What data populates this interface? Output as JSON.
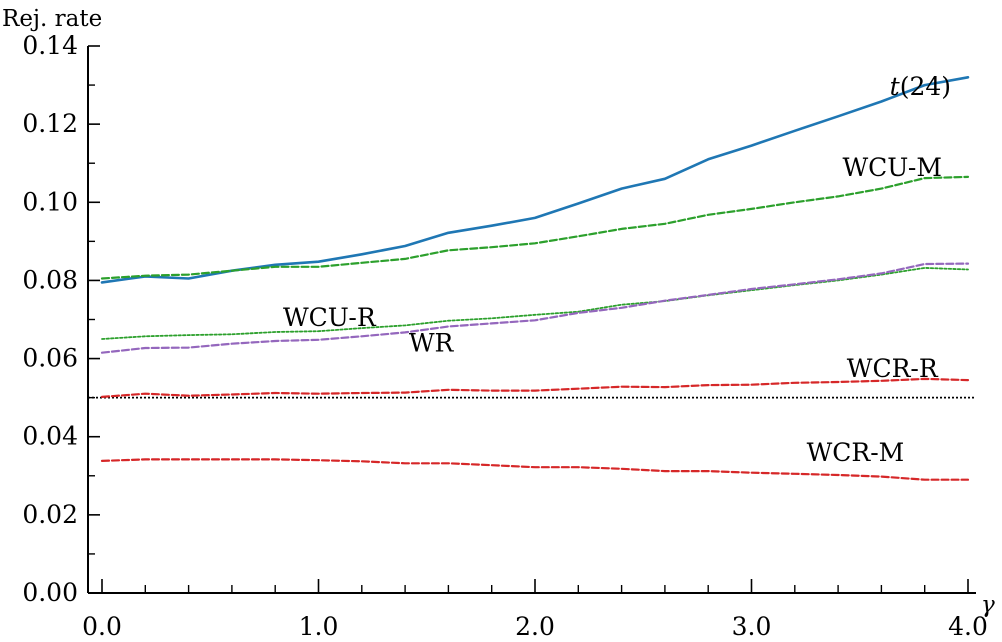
{
  "chart_data": {
    "type": "line",
    "ylabel": "Rej. rate",
    "xlabel": "γ",
    "xlim": [
      0.0,
      4.0
    ],
    "ylim": [
      0.0,
      0.14
    ],
    "x_tick_labels": [
      "0.0",
      "1.0",
      "2.0",
      "3.0",
      "4.0"
    ],
    "y_tick_labels": [
      "0.00",
      "0.02",
      "0.04",
      "0.06",
      "0.08",
      "0.10",
      "0.12",
      "0.14"
    ],
    "reference_line": {
      "y": 0.05,
      "style": "dotted",
      "color": "#000000"
    },
    "grid": false,
    "series": [
      {
        "name": "t(24)",
        "color": "#1f77b4",
        "style": "solid",
        "x": [
          0.0,
          0.2,
          0.4,
          0.6,
          0.8,
          1.0,
          1.2,
          1.4,
          1.6,
          1.8,
          2.0,
          2.2,
          2.4,
          2.6,
          2.8,
          3.0,
          3.2,
          3.4,
          3.6,
          3.8,
          4.0
        ],
        "y": [
          0.0795,
          0.081,
          0.0805,
          0.0825,
          0.084,
          0.0848,
          0.0867,
          0.0888,
          0.0922,
          0.094,
          0.096,
          0.0997,
          0.1035,
          0.106,
          0.111,
          0.1145,
          0.1183,
          0.122,
          0.1258,
          0.13,
          0.132
        ]
      },
      {
        "name": "WCU-M",
        "color": "#2ca02c",
        "style": "dashed",
        "x": [
          0.0,
          0.2,
          0.4,
          0.6,
          0.8,
          1.0,
          1.2,
          1.4,
          1.6,
          1.8,
          2.0,
          2.2,
          2.4,
          2.6,
          2.8,
          3.0,
          3.2,
          3.4,
          3.6,
          3.8,
          4.0
        ],
        "y": [
          0.0805,
          0.0812,
          0.0815,
          0.0825,
          0.0835,
          0.0835,
          0.0845,
          0.0855,
          0.0877,
          0.0885,
          0.0895,
          0.0913,
          0.0932,
          0.0945,
          0.0968,
          0.0983,
          0.1,
          0.1015,
          0.1035,
          0.1062,
          0.1065
        ]
      },
      {
        "name": "WCU-R",
        "color": "#2ca02c",
        "style": "dotted",
        "x": [
          0.0,
          0.2,
          0.4,
          0.6,
          0.8,
          1.0,
          1.2,
          1.4,
          1.6,
          1.8,
          2.0,
          2.2,
          2.4,
          2.6,
          2.8,
          3.0,
          3.2,
          3.4,
          3.6,
          3.8,
          4.0
        ],
        "y": [
          0.065,
          0.0657,
          0.066,
          0.0662,
          0.0668,
          0.067,
          0.0678,
          0.0685,
          0.0697,
          0.0703,
          0.0712,
          0.072,
          0.0738,
          0.0747,
          0.0762,
          0.0775,
          0.0788,
          0.08,
          0.0815,
          0.0832,
          0.0828
        ]
      },
      {
        "name": "WR",
        "color": "#9467bd",
        "style": "dashed",
        "x": [
          0.0,
          0.2,
          0.4,
          0.6,
          0.8,
          1.0,
          1.2,
          1.4,
          1.6,
          1.8,
          2.0,
          2.2,
          2.4,
          2.6,
          2.8,
          3.0,
          3.2,
          3.4,
          3.6,
          3.8,
          4.0
        ],
        "y": [
          0.0615,
          0.0627,
          0.0628,
          0.0638,
          0.0645,
          0.0648,
          0.0657,
          0.0667,
          0.0682,
          0.069,
          0.0698,
          0.0717,
          0.073,
          0.0748,
          0.0763,
          0.0778,
          0.079,
          0.0803,
          0.0818,
          0.0842,
          0.0843
        ]
      },
      {
        "name": "WCR-R",
        "color": "#d62728",
        "style": "dashed",
        "x": [
          0.0,
          0.2,
          0.4,
          0.6,
          0.8,
          1.0,
          1.2,
          1.4,
          1.6,
          1.8,
          2.0,
          2.2,
          2.4,
          2.6,
          2.8,
          3.0,
          3.2,
          3.4,
          3.6,
          3.8,
          4.0
        ],
        "y": [
          0.0502,
          0.051,
          0.0505,
          0.0508,
          0.0512,
          0.051,
          0.0512,
          0.0513,
          0.052,
          0.0518,
          0.0518,
          0.0523,
          0.0528,
          0.0527,
          0.0532,
          0.0533,
          0.0538,
          0.054,
          0.0543,
          0.0548,
          0.0545
        ]
      },
      {
        "name": "WCR-M",
        "color": "#d62728",
        "style": "dashed",
        "x": [
          0.0,
          0.2,
          0.4,
          0.6,
          0.8,
          1.0,
          1.2,
          1.4,
          1.6,
          1.8,
          2.0,
          2.2,
          2.4,
          2.6,
          2.8,
          3.0,
          3.2,
          3.4,
          3.6,
          3.8,
          4.0
        ],
        "y": [
          0.0338,
          0.0342,
          0.0342,
          0.0342,
          0.0342,
          0.034,
          0.0337,
          0.0332,
          0.0332,
          0.0327,
          0.0322,
          0.0322,
          0.0318,
          0.0312,
          0.0312,
          0.0308,
          0.0305,
          0.0302,
          0.0298,
          0.029,
          0.029
        ]
      }
    ],
    "annotations": [
      {
        "text": "t(24)",
        "series": "t(24)",
        "x": 3.78,
        "y": 0.1275
      },
      {
        "text": "WCU-M",
        "series": "WCU-M",
        "x": 3.65,
        "y": 0.1067
      },
      {
        "text": "WCU-R",
        "series": "WCU-R",
        "x": 1.05,
        "y": 0.0683
      },
      {
        "text": "WR",
        "series": "WR",
        "x": 1.52,
        "y": 0.0618
      },
      {
        "text": "WCR-R",
        "series": "WCR-R",
        "x": 3.65,
        "y": 0.0553
      },
      {
        "text": "WCR-M",
        "series": "WCR-M",
        "x": 3.48,
        "y": 0.0338
      }
    ]
  }
}
